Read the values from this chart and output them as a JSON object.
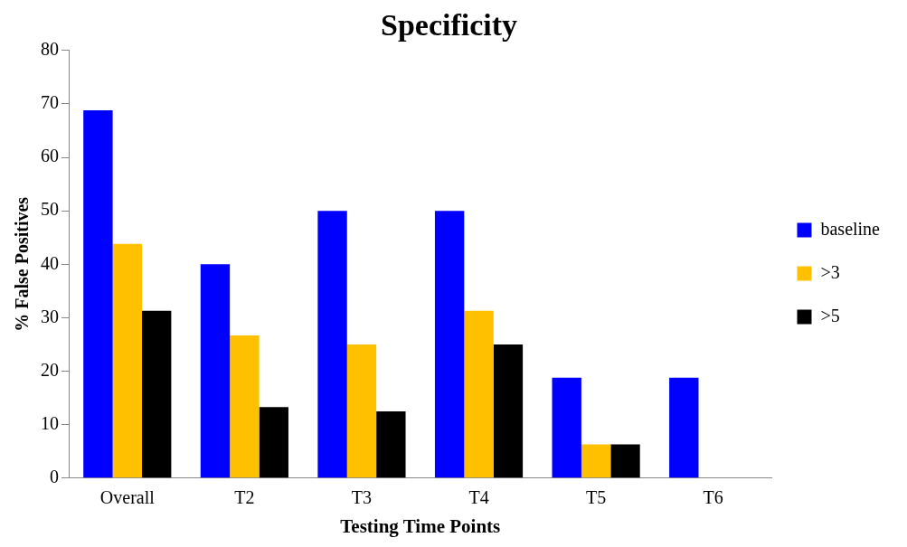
{
  "chart_data": {
    "type": "bar",
    "title": "Specificity",
    "xlabel": "Testing Time Points",
    "ylabel": "% False Positives",
    "categories": [
      "Overall",
      "T2",
      "T3",
      "T4",
      "T5",
      "T6"
    ],
    "series": [
      {
        "name": "baseline",
        "color": "#0000ff",
        "values": [
          68.8,
          40,
          50,
          50,
          18.8,
          18.8
        ]
      },
      {
        "name": ">3",
        "color": "#ffc000",
        "values": [
          43.8,
          26.7,
          25,
          31.3,
          6.3,
          0
        ]
      },
      {
        "name": ">5",
        "color": "#000000",
        "values": [
          31.3,
          13.3,
          12.5,
          25,
          6.3,
          0
        ]
      }
    ],
    "ylim": [
      0,
      80
    ],
    "yticks": [
      0,
      10,
      20,
      30,
      40,
      50,
      60,
      70,
      80
    ],
    "grid": false,
    "legend": "right"
  }
}
